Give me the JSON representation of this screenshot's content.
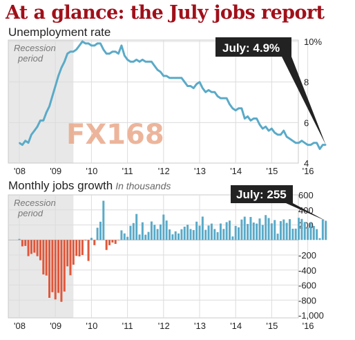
{
  "title": "At a glance: the July jobs report",
  "colors": {
    "title": "#a0101a",
    "line": "#5aaac8",
    "bar_positive": "#5aaac8",
    "bar_negative": "#e0573a",
    "recession_shade": "#e8e8e8",
    "callout_bg": "#222222",
    "callout_text": "#ffffff"
  },
  "chart_data": [
    {
      "type": "line",
      "title": "Unemployment rate",
      "callout": "July: 4.9%",
      "recession_label": [
        "Recession",
        "period"
      ],
      "x_ticks": [
        "'08",
        "'09",
        "'10",
        "'11",
        "'12",
        "'13",
        "'14",
        "'15",
        "'16"
      ],
      "y_ticks": [
        "10%",
        "8",
        "6",
        "4"
      ],
      "ylim": [
        4,
        10
      ],
      "grid": true,
      "recession_period": [
        "2008-01",
        "2009-06"
      ],
      "watermark": "FX168",
      "series": [
        {
          "x_start": "2008-01",
          "x_step": "month",
          "values": [
            5.0,
            4.9,
            5.1,
            5.0,
            5.4,
            5.6,
            5.8,
            6.1,
            6.1,
            6.5,
            6.8,
            7.3,
            7.8,
            8.3,
            8.7,
            9.0,
            9.4,
            9.5,
            9.5,
            9.6,
            9.8,
            10.0,
            9.9,
            9.9,
            9.8,
            9.8,
            9.9,
            9.9,
            9.6,
            9.4,
            9.4,
            9.5,
            9.5,
            9.4,
            9.8,
            9.3,
            9.1,
            9.0,
            9.0,
            9.1,
            9.0,
            9.1,
            9.0,
            9.0,
            9.0,
            8.8,
            8.6,
            8.5,
            8.3,
            8.3,
            8.2,
            8.2,
            8.2,
            8.2,
            8.2,
            8.0,
            7.8,
            7.8,
            7.7,
            7.9,
            8.0,
            7.7,
            7.5,
            7.6,
            7.5,
            7.5,
            7.3,
            7.2,
            7.2,
            7.2,
            6.9,
            6.7,
            6.6,
            6.7,
            6.7,
            6.2,
            6.3,
            6.1,
            6.2,
            6.2,
            5.9,
            5.7,
            5.8,
            5.6,
            5.7,
            5.5,
            5.4,
            5.4,
            5.6,
            5.3,
            5.2,
            5.1,
            5.0,
            5.0,
            5.1,
            5.0,
            4.9,
            4.9,
            5.0,
            5.0,
            4.7,
            4.9,
            4.9
          ]
        }
      ]
    },
    {
      "type": "bar",
      "title": "Monthly jobs growth",
      "subtitle": "In thousands",
      "callout": "July: 255",
      "recession_label": [
        "Recession",
        "period"
      ],
      "x_ticks": [
        "'08",
        "'09",
        "'10",
        "'11",
        "'12",
        "'13",
        "'14",
        "'15",
        "'16"
      ],
      "y_ticks": [
        "600",
        "400",
        "200",
        "",
        "-200",
        "-400",
        "-600",
        "-800",
        "-1,000"
      ],
      "ylim": [
        -1000,
        600
      ],
      "grid": true,
      "recession_period": [
        "2008-01",
        "2009-06"
      ],
      "series": [
        {
          "x_start": "2008-01",
          "x_step": "month",
          "values": [
            14,
            -85,
            -79,
            -215,
            -186,
            -169,
            -216,
            -270,
            -459,
            -473,
            -770,
            -695,
            -791,
            -703,
            -823,
            -686,
            -351,
            -470,
            -329,
            -212,
            -219,
            -200,
            -7,
            -279,
            28,
            -69,
            163,
            243,
            522,
            -133,
            -70,
            -34,
            -52,
            -2,
            128,
            87,
            42,
            188,
            225,
            346,
            73,
            235,
            70,
            107,
            246,
            202,
            146,
            207,
            338,
            259,
            141,
            75,
            115,
            87,
            143,
            177,
            203,
            146,
            132,
            244,
            190,
            311,
            135,
            192,
            218,
            146,
            104,
            219,
            147,
            237,
            258,
            47,
            187,
            168,
            272,
            310,
            213,
            306,
            232,
            218,
            286,
            200,
            331,
            292,
            221,
            265,
            84,
            251,
            273,
            228,
            277,
            150,
            151,
            295,
            280,
            239,
            168,
            233,
            186,
            144,
            24,
            271,
            255
          ]
        }
      ]
    }
  ]
}
